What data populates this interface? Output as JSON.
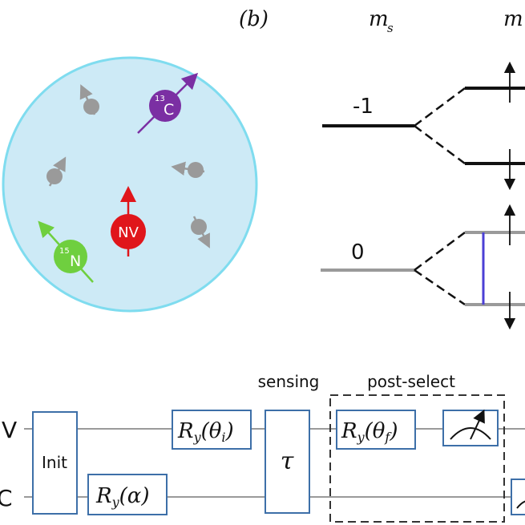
{
  "panel_b_label": "(b)",
  "energy": {
    "ms_header": "m",
    "ms_sub": "s",
    "right_header": "m",
    "level_minus1": "-1",
    "level_zero": "0"
  },
  "spin_bath": {
    "nv_label": "NV",
    "c13_label": "C",
    "c13_mass": "13",
    "n15_label": "N",
    "n15_mass": "15"
  },
  "circuit": {
    "sensing_label": "sensing",
    "postselect_label": "post-select",
    "wire_top_label": "V",
    "wire_bottom_label": "C",
    "init_label": "Init",
    "ry_theta_i": "R",
    "ry_theta_i_sub": "y",
    "ry_theta_i_arg": "(θ",
    "ry_theta_i_argsub": "i",
    "ry_alpha": "R",
    "ry_alpha_sub": "y",
    "ry_alpha_arg": "(α)",
    "tau": "τ",
    "ry_theta_f": "R",
    "ry_theta_f_sub": "y",
    "ry_theta_f_arg": "(θ",
    "ry_theta_f_argsub": "f"
  },
  "colors": {
    "sphere_fill": "#cdeaf6",
    "sphere_stroke": "#7fdcef",
    "nv": "#e0161b",
    "c13": "#7b2fa3",
    "n15": "#6fcf3f",
    "gray_spin": "#9a9a9a",
    "transition": "#4b3fd6"
  }
}
